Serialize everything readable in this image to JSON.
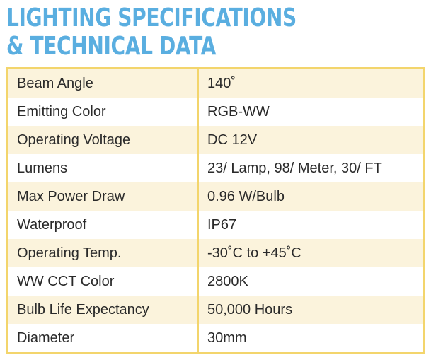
{
  "title": {
    "line1": "LIGHTING SPECIFICATIONS",
    "line2": "& TECHNICAL DATA"
  },
  "specs": [
    {
      "label": "Beam Angle",
      "value": "140˚"
    },
    {
      "label": "Emitting Color",
      "value": "RGB-WW"
    },
    {
      "label": "Operating Voltage",
      "value": "DC 12V"
    },
    {
      "label": "Lumens",
      "value": "23/ Lamp, 98/ Meter, 30/ FT"
    },
    {
      "label": "Max Power Draw",
      "value": "0.96 W/Bulb"
    },
    {
      "label": "Waterproof",
      "value": "IP67"
    },
    {
      "label": "Operating Temp.",
      "value": "-30˚C to +45˚C"
    },
    {
      "label": "WW CCT Color",
      "value": "2800K"
    },
    {
      "label": "Bulb Life Expectancy",
      "value": "50,000 Hours"
    },
    {
      "label": "Diameter",
      "value": "30mm"
    }
  ],
  "colors": {
    "title": "#5aaee0",
    "border": "#f3d56c",
    "row_shade": "#fbf3dc",
    "text": "#2a2a2a"
  }
}
